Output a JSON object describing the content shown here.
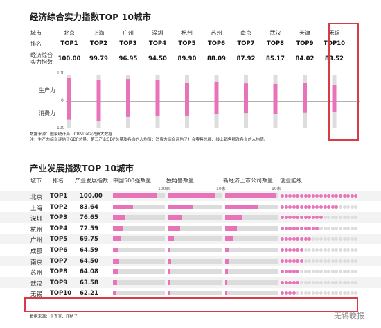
{
  "chart_data": [
    {
      "type": "bar",
      "title": "经济综合实力指数TOP 10城市",
      "row_labels": {
        "city": "城市",
        "rank": "排名",
        "score": "经济综合实力指数"
      },
      "categories": [
        "北京",
        "上海",
        "广州",
        "深圳",
        "杭州",
        "苏州",
        "南京",
        "武汉",
        "天津",
        "无锡"
      ],
      "ranks": [
        "TOP1",
        "TOP2",
        "TOP3",
        "TOP4",
        "TOP5",
        "TOP6",
        "TOP7",
        "TOP8",
        "TOP9",
        "TOP10"
      ],
      "scores": [
        "100.00",
        "99.79",
        "96.95",
        "94.50",
        "89.90",
        "88.09",
        "87.92",
        "85.17",
        "84.02",
        "83.52"
      ],
      "series": [
        {
          "name": "生产力",
          "values": [
            88,
            80,
            84,
            80,
            70,
            74,
            68,
            66,
            70,
            62
          ]
        },
        {
          "name": "消费力",
          "values": [
            70,
            75,
            60,
            58,
            55,
            50,
            45,
            48,
            44,
            40
          ]
        }
      ],
      "axis_ticks": [
        "100",
        "0",
        "100"
      ],
      "ylim": [
        -100,
        100
      ],
      "highlight": "无锡",
      "colors": {
        "pink": "#e873b9",
        "gray": "#dddddd",
        "red": "#d93a45"
      }
    },
    {
      "type": "table",
      "title": "产业发展指数TOP 10城市",
      "columns": [
        "城市",
        "排名",
        "产业发展指数",
        "中国500强数量",
        "独角兽数量",
        "新经济上市公司数量",
        "创业能级"
      ],
      "scale_labels": [
        "100家",
        "10家",
        "10家"
      ],
      "rows": [
        {
          "city": "北京",
          "rank": "TOP1",
          "score": "100.00",
          "c500": 0.85,
          "unicorn": 0.87,
          "listed": 0.95,
          "level": 20
        },
        {
          "city": "上海",
          "rank": "TOP2",
          "score": "83.64",
          "c500": 0.38,
          "unicorn": 0.45,
          "listed": 0.62,
          "level": 15
        },
        {
          "city": "深圳",
          "rank": "TOP3",
          "score": "76.65",
          "c500": 0.22,
          "unicorn": 0.25,
          "listed": 0.32,
          "level": 11
        },
        {
          "city": "杭州",
          "rank": "TOP4",
          "score": "72.59",
          "c500": 0.2,
          "unicorn": 0.22,
          "listed": 0.22,
          "level": 10
        },
        {
          "city": "广州",
          "rank": "TOP5",
          "score": "69.75",
          "c500": 0.16,
          "unicorn": 0.1,
          "listed": 0.15,
          "level": 8
        },
        {
          "city": "成都",
          "rank": "TOP6",
          "score": "64.59",
          "c500": 0.1,
          "unicorn": 0.03,
          "listed": 0.08,
          "level": 6
        },
        {
          "city": "南京",
          "rank": "TOP7",
          "score": "64.50",
          "c500": 0.12,
          "unicorn": 0.05,
          "listed": 0.06,
          "level": 6
        },
        {
          "city": "苏州",
          "rank": "TOP8",
          "score": "64.08",
          "c500": 0.1,
          "unicorn": 0.03,
          "listed": 0.05,
          "level": 5
        },
        {
          "city": "武汉",
          "rank": "TOP9",
          "score": "63.58",
          "c500": 0.08,
          "unicorn": 0.04,
          "listed": 0.04,
          "level": 5
        },
        {
          "city": "无锡",
          "rank": "TOP10",
          "score": "62.21",
          "c500": 0.06,
          "unicorn": 0.02,
          "listed": 0.03,
          "level": 4
        }
      ],
      "level_max": 20,
      "highlight": "无锡"
    }
  ],
  "notes": {
    "source1": "数据来源：国家统计局、CBNData消费大数据",
    "note1": "注：生产力综合评估了GDP总量、第三产业GDP总量及各自的人均值；消费力综合评估了社会零售总额、线上销售额及各自的人均值。",
    "source2": "数据来源：企查查、IT桔子"
  },
  "watermark": "无锡晚报"
}
